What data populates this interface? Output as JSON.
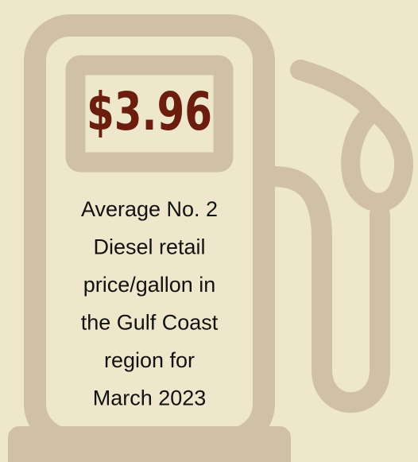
{
  "price": "$3.96",
  "description": [
    "Average No. 2",
    "Diesel retail",
    "price/gallon in",
    "the Gulf Coast",
    "region for",
    "March 2023"
  ]
}
